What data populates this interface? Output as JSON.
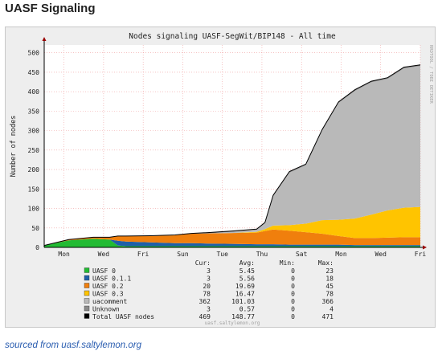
{
  "page_title": "UASF Signaling",
  "source_link": "sourced from uasf.saltylemon.org",
  "chart_data": {
    "type": "area",
    "title": "Nodes signaling UASF-SegWit/BIP148 - All time",
    "ylabel": "Number of nodes",
    "watermark": "RRDTOOL / TOBI OETIKER",
    "footer": "uasf.saltylemon.org",
    "ylim": [
      0,
      520
    ],
    "yticks": [
      0,
      50,
      100,
      150,
      200,
      250,
      300,
      350,
      400,
      450,
      500
    ],
    "categories": [
      "Mon",
      "Wed",
      "Fri",
      "Sun",
      "Tue",
      "Thu",
      "Sat",
      "Mon",
      "Wed",
      "Fri"
    ],
    "grid": true,
    "legend_position": "bottom",
    "legend_headers": [
      "Cur:",
      "Avg:",
      "Min:",
      "Max:"
    ],
    "series": [
      {
        "name": "UASF 0",
        "color": "#22bb33",
        "cur": "3",
        "avg": "5.45",
        "min": "0",
        "max": "23"
      },
      {
        "name": "UASF 0.1.1",
        "color": "#1f5fa8",
        "cur": "3",
        "avg": "5.56",
        "min": "0",
        "max": "18"
      },
      {
        "name": "UASF 0.2",
        "color": "#f07f0d",
        "cur": "20",
        "avg": "19.69",
        "min": "0",
        "max": "45"
      },
      {
        "name": "UASF 0.3",
        "color": "#ffc400",
        "cur": "78",
        "avg": "16.47",
        "min": "0",
        "max": "78"
      },
      {
        "name": "uacomment",
        "color": "#b9b9b9",
        "cur": "362",
        "avg": "101.03",
        "min": "0",
        "max": "366"
      },
      {
        "name": "Unknown",
        "color": "#8a8a8a",
        "cur": "3",
        "avg": "0.57",
        "min": "0",
        "max": "4"
      },
      {
        "name": "Total UASF nodes",
        "color": "#000000",
        "cur": "469",
        "avg": "148.77",
        "min": "0",
        "max": "471"
      }
    ],
    "x": [
      0,
      0.6,
      1.2,
      1.6,
      1.8,
      2.0,
      2.6,
      3.2,
      3.6,
      4.0,
      4.6,
      5.2,
      5.4,
      5.6,
      6.0,
      6.4,
      6.8,
      7.2,
      7.6,
      8.0,
      8.4,
      8.8,
      9.2
    ],
    "stack": {
      "UASF 0": [
        5,
        18,
        22,
        20,
        5,
        3,
        3,
        3,
        3,
        3,
        3,
        3,
        3,
        3,
        3,
        3,
        3,
        3,
        3,
        3,
        3,
        3,
        3
      ],
      "UASF 0.1.1": [
        0,
        0,
        0,
        0,
        12,
        12,
        10,
        8,
        8,
        7,
        6,
        5,
        5,
        5,
        4,
        4,
        4,
        4,
        3,
        3,
        3,
        3,
        3
      ],
      "UASF 0.2": [
        0,
        2,
        4,
        6,
        12,
        14,
        16,
        20,
        24,
        26,
        28,
        30,
        34,
        38,
        36,
        32,
        28,
        22,
        18,
        18,
        19,
        20,
        20
      ],
      "UASF 0.3": [
        0,
        0,
        0,
        0,
        0,
        0,
        0,
        0,
        0,
        0,
        0,
        2,
        5,
        10,
        14,
        22,
        35,
        42,
        50,
        60,
        70,
        76,
        78
      ],
      "uacomment": [
        0,
        0,
        0,
        0,
        0,
        0,
        0,
        0,
        0,
        0,
        3,
        5,
        15,
        75,
        135,
        150,
        230,
        300,
        328,
        340,
        338,
        358,
        362
      ],
      "Unknown": [
        0,
        0,
        0,
        0,
        0,
        0,
        1,
        1,
        1,
        2,
        2,
        2,
        2,
        3,
        3,
        3,
        3,
        3,
        3,
        3,
        3,
        3,
        3
      ]
    },
    "total": [
      5,
      20,
      26,
      26,
      29,
      29,
      30,
      32,
      36,
      38,
      42,
      47,
      64,
      134,
      195,
      214,
      303,
      374,
      405,
      427,
      436,
      463,
      469
    ]
  }
}
